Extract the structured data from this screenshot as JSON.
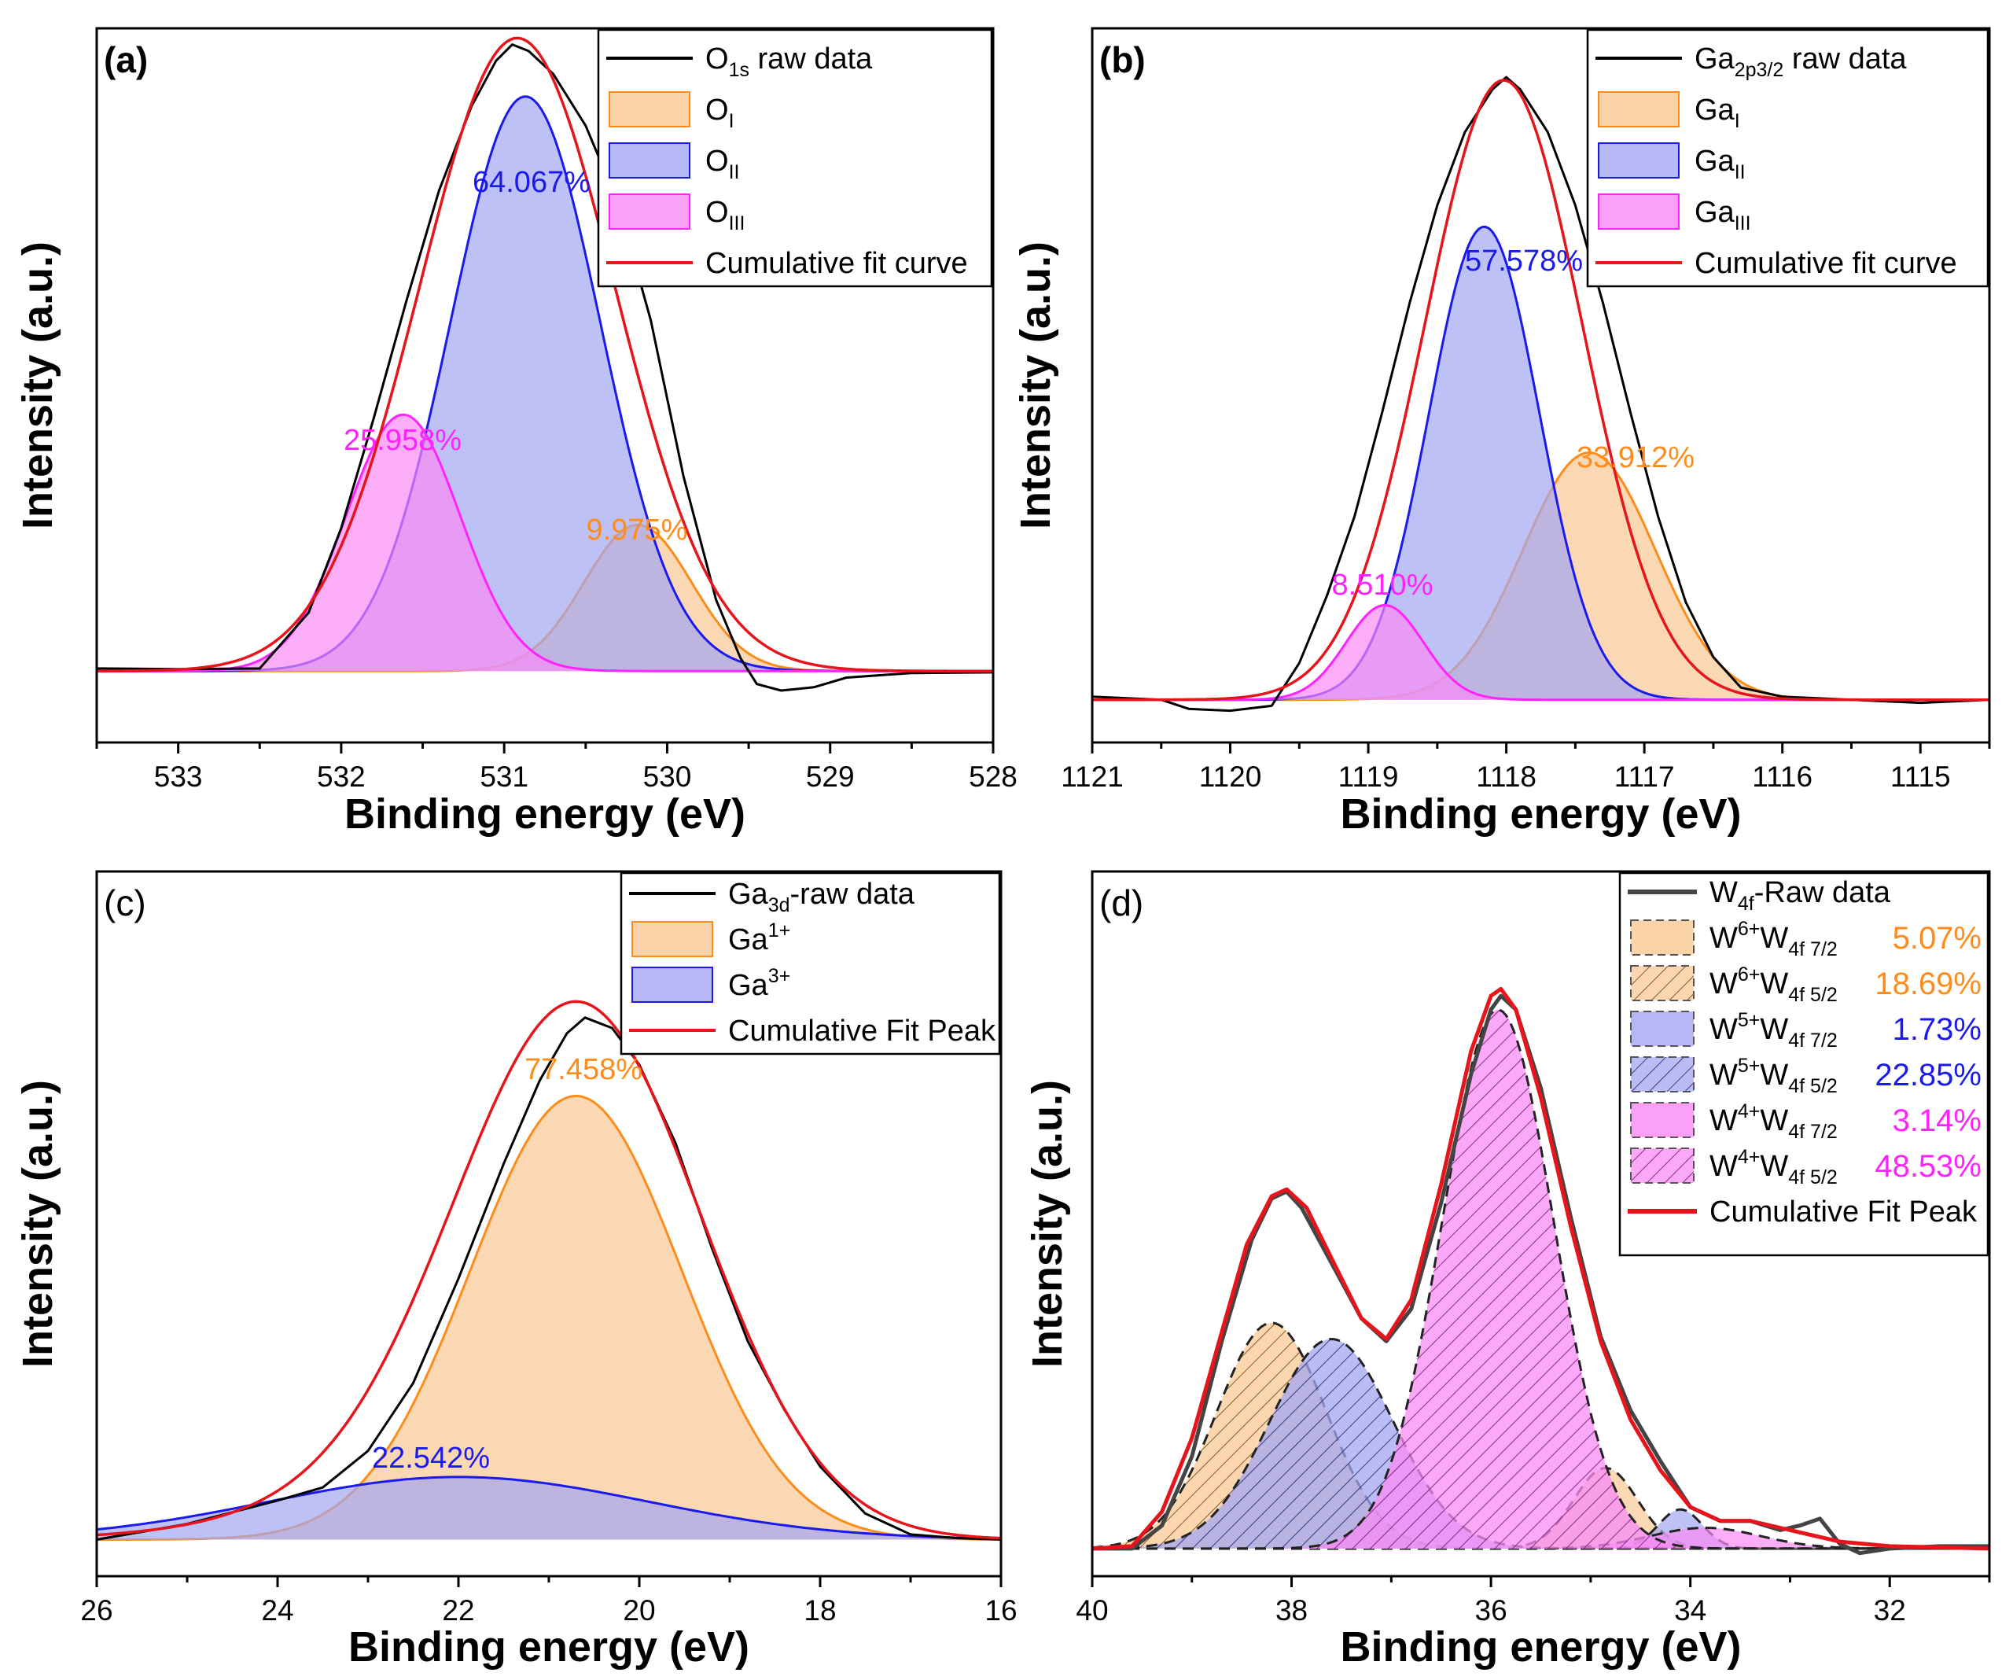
{
  "colors": {
    "raw": "#000000",
    "raw_d": "#444444",
    "fit": "#e8141c",
    "orange": "#ff8c1a",
    "orange_fill": "#f9c894",
    "blue": "#1a1aee",
    "blue_fill": "#a3a6f1",
    "magenta": "#ff22ff",
    "magenta_fill": "#f98af5"
  },
  "chart_data": [
    {
      "type": "line",
      "panel": "(a)",
      "title_bold": true,
      "xlabel": "Binding energy (eV)",
      "ylabel": "Intensity (a.u.)",
      "xlim": [
        533.5,
        528
      ],
      "ylim": [
        -0.08,
        1.02
      ],
      "xticks": [
        533,
        532,
        531,
        530,
        529,
        528
      ],
      "baseline": 0.03,
      "raw": {
        "points": [
          [
            533.5,
            0.034
          ],
          [
            533.0,
            0.033
          ],
          [
            532.5,
            0.034
          ],
          [
            532.2,
            0.12
          ],
          [
            532.0,
            0.25
          ],
          [
            531.8,
            0.42
          ],
          [
            531.6,
            0.6
          ],
          [
            531.4,
            0.77
          ],
          [
            531.2,
            0.9
          ],
          [
            531.05,
            0.97
          ],
          [
            530.95,
            0.995
          ],
          [
            530.85,
            0.985
          ],
          [
            530.7,
            0.95
          ],
          [
            530.5,
            0.87
          ],
          [
            530.3,
            0.75
          ],
          [
            530.1,
            0.57
          ],
          [
            529.9,
            0.33
          ],
          [
            529.7,
            0.14
          ],
          [
            529.55,
            0.05
          ],
          [
            529.45,
            0.01
          ],
          [
            529.3,
            0.0
          ],
          [
            529.1,
            0.005
          ],
          [
            528.9,
            0.02
          ],
          [
            528.5,
            0.027
          ],
          [
            528.0,
            0.028
          ]
        ]
      },
      "fit": {
        "center": 530.92,
        "amplitude": 0.975,
        "sigma": 0.6
      },
      "peaks": [
        {
          "id": "O_I",
          "center": 530.18,
          "amplitude": 0.225,
          "sigma": 0.33,
          "color": "orange",
          "fill": "orange_fill",
          "label": "9.975%",
          "hatch": false
        },
        {
          "id": "O_II",
          "center": 530.87,
          "amplitude": 0.885,
          "sigma": 0.46,
          "color": "blue",
          "fill": "blue_fill",
          "label": "64.067%",
          "hatch": false
        },
        {
          "id": "O_III",
          "center": 531.62,
          "amplitude": 0.395,
          "sigma": 0.35,
          "color": "magenta",
          "fill": "magenta_fill",
          "label": "25.958%",
          "hatch": false
        }
      ],
      "legend": [
        {
          "kind": "line",
          "color": "raw",
          "main": "O",
          "sub": "1s",
          "rest": " raw data"
        },
        {
          "kind": "patch",
          "color": "orange",
          "fill": "orange_fill",
          "main": "O",
          "sub": "I",
          "rest": ""
        },
        {
          "kind": "patch",
          "color": "blue",
          "fill": "blue_fill",
          "main": "O",
          "sub": "II",
          "rest": ""
        },
        {
          "kind": "patch",
          "color": "magenta",
          "fill": "magenta_fill",
          "main": "O",
          "sub": "III",
          "rest": ""
        },
        {
          "kind": "line",
          "color": "fit",
          "main": "Cumulative fit curve",
          "sub": "",
          "rest": ""
        }
      ],
      "legend_position": "top-right"
    },
    {
      "type": "line",
      "panel": "(b)",
      "title_bold": true,
      "xlabel": "Binding energy (eV)",
      "ylabel": "Intensity (a.u.)",
      "xlim": [
        1121,
        1114.5
      ],
      "ylim": [
        -0.07,
        1.1
      ],
      "xticks": [
        1121,
        1120,
        1119,
        1118,
        1117,
        1116,
        1115
      ],
      "baseline": 0.0,
      "raw": {
        "points": [
          [
            1121.0,
            0.005
          ],
          [
            1120.5,
            0.0
          ],
          [
            1120.3,
            -0.015
          ],
          [
            1120.0,
            -0.018
          ],
          [
            1119.7,
            -0.01
          ],
          [
            1119.5,
            0.06
          ],
          [
            1119.3,
            0.17
          ],
          [
            1119.1,
            0.3
          ],
          [
            1118.9,
            0.47
          ],
          [
            1118.7,
            0.65
          ],
          [
            1118.5,
            0.81
          ],
          [
            1118.3,
            0.93
          ],
          [
            1118.1,
            1.0
          ],
          [
            1118.0,
            1.02
          ],
          [
            1117.9,
            1.0
          ],
          [
            1117.7,
            0.93
          ],
          [
            1117.5,
            0.81
          ],
          [
            1117.3,
            0.65
          ],
          [
            1117.1,
            0.47
          ],
          [
            1116.9,
            0.3
          ],
          [
            1116.7,
            0.16
          ],
          [
            1116.5,
            0.07
          ],
          [
            1116.3,
            0.02
          ],
          [
            1116.0,
            0.005
          ],
          [
            1115.5,
            0.0
          ],
          [
            1115.0,
            -0.005
          ],
          [
            1114.5,
            0.0
          ]
        ]
      },
      "fit": {
        "center": 1118.02,
        "amplitude": 1.015,
        "sigma": 0.57
      },
      "peaks": [
        {
          "id": "Ga_I",
          "center": 1117.4,
          "amplitude": 0.405,
          "sigma": 0.48,
          "color": "orange",
          "fill": "orange_fill",
          "label": "33.912%",
          "hatch": false
        },
        {
          "id": "Ga_II",
          "center": 1118.16,
          "amplitude": 0.775,
          "sigma": 0.4,
          "color": "blue",
          "fill": "blue_fill",
          "label": "57.578%",
          "hatch": false
        },
        {
          "id": "Ga_III",
          "center": 1118.88,
          "amplitude": 0.155,
          "sigma": 0.28,
          "color": "magenta",
          "fill": "magenta_fill",
          "label": "8.510%",
          "hatch": false
        }
      ],
      "legend": [
        {
          "kind": "line",
          "color": "raw",
          "main": "Ga",
          "sub": "2p3/2",
          "rest": " raw data"
        },
        {
          "kind": "patch",
          "color": "orange",
          "fill": "orange_fill",
          "main": "Ga",
          "sub": "I",
          "rest": ""
        },
        {
          "kind": "patch",
          "color": "blue",
          "fill": "blue_fill",
          "main": "Ga",
          "sub": "II",
          "rest": ""
        },
        {
          "kind": "patch",
          "color": "magenta",
          "fill": "magenta_fill",
          "main": "Ga",
          "sub": "III",
          "rest": ""
        },
        {
          "kind": "line",
          "color": "fit",
          "main": "Cumulative fit curve",
          "sub": "",
          "rest": ""
        }
      ],
      "legend_position": "top-right"
    },
    {
      "type": "line",
      "panel": "(c)",
      "title_bold": false,
      "xlabel": "Binding energy (eV)",
      "ylabel": "Intensity (a.u.)",
      "xlim": [
        26,
        16
      ],
      "ylim": [
        -0.07,
        1.28
      ],
      "xticks": [
        26,
        24,
        22,
        20,
        18,
        16
      ],
      "baseline": 0.0,
      "raw": {
        "points": [
          [
            26.0,
            0.0
          ],
          [
            25.0,
            0.03
          ],
          [
            24.0,
            0.075
          ],
          [
            23.5,
            0.1
          ],
          [
            23.0,
            0.17
          ],
          [
            22.5,
            0.3
          ],
          [
            22.0,
            0.5
          ],
          [
            21.5,
            0.72
          ],
          [
            21.1,
            0.88
          ],
          [
            20.8,
            0.97
          ],
          [
            20.6,
            1.0
          ],
          [
            20.3,
            0.98
          ],
          [
            20.0,
            0.91
          ],
          [
            19.6,
            0.76
          ],
          [
            19.2,
            0.56
          ],
          [
            18.8,
            0.38
          ],
          [
            18.4,
            0.25
          ],
          [
            18.0,
            0.14
          ],
          [
            17.5,
            0.05
          ],
          [
            17.0,
            0.01
          ],
          [
            16.5,
            0.003
          ],
          [
            16.0,
            0.0
          ]
        ]
      },
      "fit": {
        "center": 20.65,
        "amplitude": 0.975,
        "sigma": 1.35,
        "tail": {
          "center": 22.2,
          "amplitude": 0.08,
          "sigma": 1.8
        }
      },
      "peaks": [
        {
          "id": "Ga_1plus",
          "center": 20.7,
          "amplitude": 0.85,
          "sigma": 1.17,
          "color": "orange",
          "fill": "orange_fill",
          "label": "77.458%",
          "hatch": false
        },
        {
          "id": "Ga_3plus",
          "center": 22.0,
          "amplitude": 0.12,
          "sigma": 2.1,
          "color": "blue",
          "fill": "blue_fill",
          "label": "22.542%",
          "hatch": false
        }
      ],
      "legend": [
        {
          "kind": "line",
          "color": "raw",
          "main": "Ga",
          "sub": "3d",
          "rest": "-raw data"
        },
        {
          "kind": "patch",
          "color": "orange",
          "fill": "orange_fill",
          "main": "Ga",
          "sup": "1+",
          "rest": ""
        },
        {
          "kind": "patch",
          "color": "blue",
          "fill": "blue_fill",
          "main": "Ga",
          "sup": "3+",
          "rest": ""
        },
        {
          "kind": "line",
          "color": "fit",
          "main": "Cumulative Fit Peak",
          "sub": "",
          "rest": ""
        }
      ],
      "legend_position": "top-right"
    },
    {
      "type": "line",
      "panel": "(d)",
      "title_bold": false,
      "xlabel": "Binding energy (eV)",
      "ylabel": "Intensity (a.u.)",
      "xlim": [
        40,
        31
      ],
      "ylim": [
        -0.06,
        1.47
      ],
      "xticks": [
        40,
        38,
        36,
        34,
        32
      ],
      "baseline": 0.0,
      "raw": {
        "points": [
          [
            40.0,
            0.0
          ],
          [
            39.6,
            0.0
          ],
          [
            39.3,
            0.05
          ],
          [
            39.0,
            0.2
          ],
          [
            38.7,
            0.45
          ],
          [
            38.4,
            0.67
          ],
          [
            38.2,
            0.76
          ],
          [
            38.05,
            0.775
          ],
          [
            37.9,
            0.74
          ],
          [
            37.6,
            0.62
          ],
          [
            37.3,
            0.5
          ],
          [
            37.05,
            0.45
          ],
          [
            36.8,
            0.52
          ],
          [
            36.5,
            0.75
          ],
          [
            36.2,
            1.03
          ],
          [
            36.0,
            1.17
          ],
          [
            35.9,
            1.2
          ],
          [
            35.75,
            1.17
          ],
          [
            35.5,
            1.0
          ],
          [
            35.2,
            0.72
          ],
          [
            34.9,
            0.46
          ],
          [
            34.6,
            0.3
          ],
          [
            34.3,
            0.19
          ],
          [
            34.0,
            0.09
          ],
          [
            33.7,
            0.06
          ],
          [
            33.4,
            0.06
          ],
          [
            33.1,
            0.04
          ],
          [
            32.9,
            0.05
          ],
          [
            32.7,
            0.065
          ],
          [
            32.5,
            0.01
          ],
          [
            32.3,
            -0.01
          ],
          [
            32.0,
            0.0
          ],
          [
            31.5,
            0.005
          ],
          [
            31.0,
            0.005
          ]
        ]
      },
      "fit": {
        "center": 0,
        "amplitude": 0,
        "sigma": 0
      },
      "fit_points": [
        [
          40.0,
          0.0
        ],
        [
          39.6,
          0.005
        ],
        [
          39.3,
          0.08
        ],
        [
          39.0,
          0.24
        ],
        [
          38.7,
          0.47
        ],
        [
          38.45,
          0.66
        ],
        [
          38.2,
          0.765
        ],
        [
          38.05,
          0.78
        ],
        [
          37.85,
          0.74
        ],
        [
          37.6,
          0.63
        ],
        [
          37.3,
          0.5
        ],
        [
          37.05,
          0.455
        ],
        [
          36.8,
          0.54
        ],
        [
          36.5,
          0.79
        ],
        [
          36.2,
          1.08
        ],
        [
          36.0,
          1.2
        ],
        [
          35.9,
          1.215
        ],
        [
          35.75,
          1.17
        ],
        [
          35.5,
          0.98
        ],
        [
          35.2,
          0.7
        ],
        [
          34.9,
          0.45
        ],
        [
          34.6,
          0.28
        ],
        [
          34.3,
          0.17
        ],
        [
          34.0,
          0.09
        ],
        [
          33.7,
          0.06
        ],
        [
          33.4,
          0.06
        ],
        [
          33.1,
          0.045
        ],
        [
          32.8,
          0.03
        ],
        [
          32.5,
          0.015
        ],
        [
          32.0,
          0.005
        ],
        [
          31.0,
          0.0
        ]
      ],
      "peaks": [
        {
          "id": "W6_7_2",
          "center": 34.85,
          "amplitude": 0.175,
          "sigma": 0.32,
          "color": "orange",
          "fill": "orange_fill",
          "label": "5.07%",
          "hatch": false
        },
        {
          "id": "W6_5_2",
          "center": 38.2,
          "amplitude": 0.49,
          "sigma": 0.55,
          "color": "orange",
          "fill": "orange_fill",
          "label": "18.69%",
          "hatch": true
        },
        {
          "id": "W5_7_2",
          "center": 34.1,
          "amplitude": 0.085,
          "sigma": 0.22,
          "color": "blue",
          "fill": "blue_fill",
          "label": "1.73%",
          "hatch": false
        },
        {
          "id": "W5_5_2",
          "center": 37.6,
          "amplitude": 0.455,
          "sigma": 0.62,
          "color": "blue",
          "fill": "blue_fill",
          "label": "22.85%",
          "hatch": true
        },
        {
          "id": "W4_7_2",
          "center": 33.85,
          "amplitude": 0.045,
          "sigma": 0.55,
          "color": "magenta",
          "fill": "magenta_fill",
          "label": "3.14%",
          "hatch": false
        },
        {
          "id": "W4_5_2",
          "center": 35.93,
          "amplitude": 1.17,
          "sigma": 0.56,
          "color": "magenta",
          "fill": "magenta_fill",
          "label": "48.53%",
          "hatch": true
        }
      ],
      "legend": [
        {
          "kind": "line",
          "color": "raw_d",
          "main": "W",
          "sub": "4f",
          "rest": "-Raw data"
        },
        {
          "kind": "patch",
          "color": "orange",
          "fill": "orange_fill",
          "main": "W",
          "sup": "6+",
          "main2": "W",
          "sub2": "4f 7/2",
          "pct": "5.07%",
          "hatch": false
        },
        {
          "kind": "patch",
          "color": "orange",
          "fill": "orange_fill",
          "main": "W",
          "sup": "6+",
          "main2": "W",
          "sub2": "4f 5/2",
          "pct": "18.69%",
          "hatch": true
        },
        {
          "kind": "patch",
          "color": "blue",
          "fill": "blue_fill",
          "main": "W",
          "sup": "5+",
          "main2": "W",
          "sub2": "4f 7/2",
          "pct": "1.73%",
          "hatch": false
        },
        {
          "kind": "patch",
          "color": "blue",
          "fill": "blue_fill",
          "main": "W",
          "sup": "5+",
          "main2": "W",
          "sub2": "4f 5/2",
          "pct": "22.85%",
          "hatch": true
        },
        {
          "kind": "patch",
          "color": "magenta",
          "fill": "magenta_fill",
          "main": "W",
          "sup": "4+",
          "main2": "W",
          "sub2": "4f 7/2",
          "pct": "3.14%",
          "hatch": false
        },
        {
          "kind": "patch",
          "color": "magenta",
          "fill": "magenta_fill",
          "main": "W",
          "sup": "4+",
          "main2": "W",
          "sub2": "4f 5/2",
          "pct": "48.53%",
          "hatch": true
        },
        {
          "kind": "line",
          "color": "fit",
          "main": "Cumulative Fit Peak",
          "sub": "",
          "rest": ""
        }
      ],
      "legend_position": "top-right"
    }
  ]
}
